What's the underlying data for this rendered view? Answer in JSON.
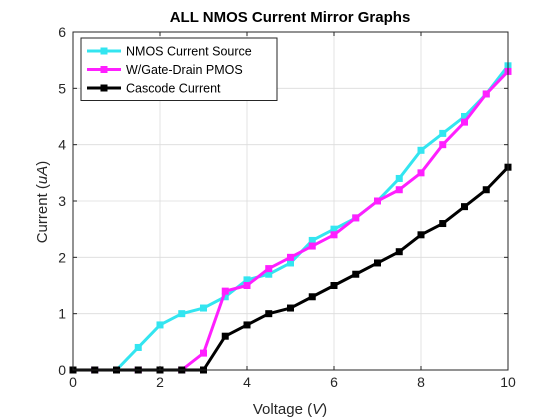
{
  "chart_data": {
    "type": "line",
    "title": "ALL NMOS Current Mirror Graphs",
    "xlabel": "Voltage",
    "xlabel_unit": "V",
    "ylabel": "Current",
    "ylabel_unit": "uA",
    "xlim": [
      0,
      10
    ],
    "ylim": [
      0,
      6
    ],
    "xticks": [
      0,
      2,
      4,
      6,
      8,
      10
    ],
    "yticks": [
      0,
      1,
      2,
      3,
      4,
      5,
      6
    ],
    "grid": true,
    "legend_position": "top-left",
    "x": [
      0,
      0.5,
      1,
      1.5,
      2,
      2.5,
      3,
      3.5,
      4,
      4.5,
      5,
      5.5,
      6,
      6.5,
      7,
      7.5,
      8,
      8.5,
      9,
      9.5,
      10
    ],
    "series": [
      {
        "name": "NMOS Current Source",
        "color": "#33e5f0",
        "values": [
          0,
          0,
          0,
          0.4,
          0.8,
          1.0,
          1.1,
          1.3,
          1.6,
          1.7,
          1.9,
          2.3,
          2.5,
          2.7,
          3.0,
          3.4,
          3.9,
          4.2,
          4.5,
          4.9,
          5.4
        ]
      },
      {
        "name": "W/Gate-Drain PMOS",
        "color": "#ff1fff",
        "values": [
          0,
          0,
          0,
          0,
          0,
          0,
          0.3,
          1.4,
          1.5,
          1.8,
          2.0,
          2.2,
          2.4,
          2.7,
          3.0,
          3.2,
          3.5,
          4.0,
          4.4,
          4.9,
          5.3
        ]
      },
      {
        "name": "Cascode Current",
        "color": "#000000",
        "values": [
          0,
          0,
          0,
          0,
          0,
          0,
          0,
          0.6,
          0.8,
          1.0,
          1.1,
          1.3,
          1.5,
          1.7,
          1.9,
          2.1,
          2.4,
          2.6,
          2.9,
          3.2,
          3.6
        ]
      }
    ]
  }
}
